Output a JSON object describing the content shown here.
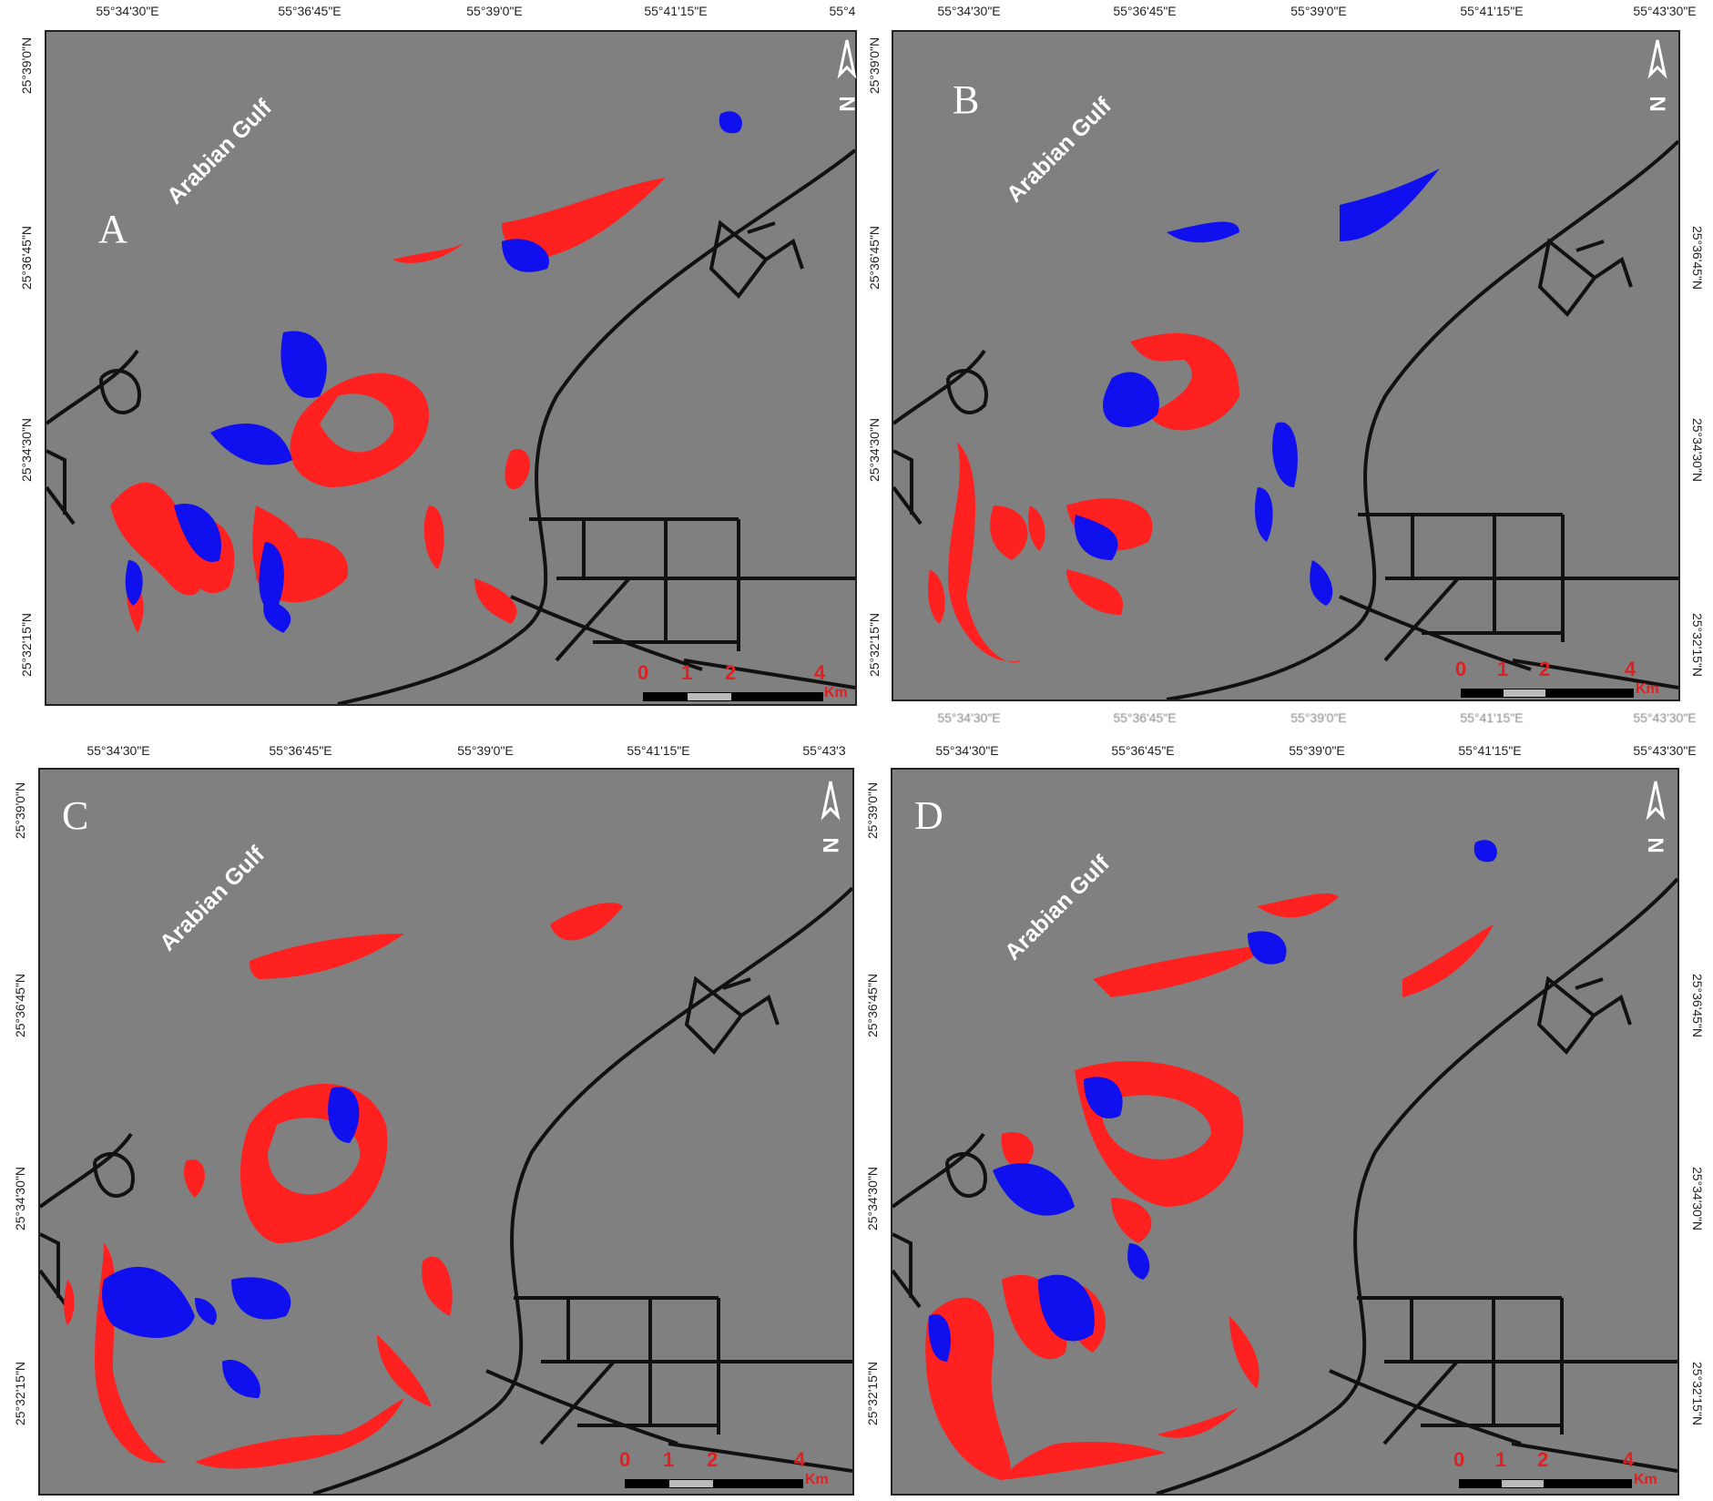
{
  "colors": {
    "background": "#808080",
    "class_red": "#ff2020",
    "class_blue": "#1010ee",
    "roads": "#111111"
  },
  "water_body": "Arabian Gulf",
  "longitude_ticks": [
    "55°34'30\"E",
    "55°36'45\"E",
    "55°39'0\"E",
    "55°41'15\"E",
    "55°43'30\"E"
  ],
  "latitude_ticks": [
    "25°39'0\"N",
    "25°36'45\"N",
    "25°34'30\"N",
    "25°32'15\"N"
  ],
  "scale_bar": {
    "numbers": [
      "0",
      "1",
      "2",
      "4"
    ],
    "unit": "Km"
  },
  "north_arrow_icon": "north-arrow-icon",
  "panels": [
    {
      "label": "A",
      "top_ticks": [
        "55°34'30\"E",
        "55°36'45\"E",
        "55°39'0\"E",
        "55°41'15\"E",
        "55°4"
      ]
    },
    {
      "label": "B",
      "top_ticks": [
        "55°34'30\"E",
        "55°36'45\"E",
        "55°39'0\"E",
        "55°41'15\"E",
        "55°43'30\"E"
      ]
    },
    {
      "label": "C",
      "top_ticks": [
        "55°34'30\"E",
        "55°36'45\"E",
        "55°39'0\"E",
        "55°41'15\"E",
        "55°43'3"
      ]
    },
    {
      "label": "D",
      "top_ticks": [
        "55°34'30\"E",
        "55°36'45\"E",
        "55°39'0\"E",
        "55°41'15\"E",
        "55°43'30\"E"
      ]
    }
  ]
}
